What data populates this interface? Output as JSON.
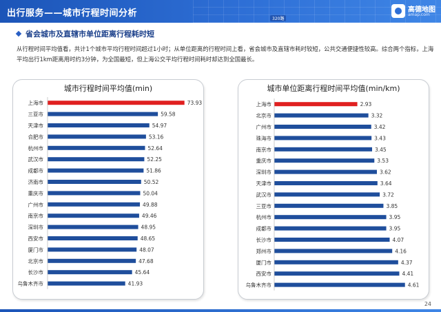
{
  "header": {
    "title": "出行服务——城市行程时间分析",
    "map_badge": "320路",
    "logo_name": "高德地图",
    "logo_url": "amap.com"
  },
  "section": {
    "title": "省会城市及直辖市单位距离行程耗时短"
  },
  "paragraph": "从行程时间平均值看，共计1个城市平均行程时间超过1小时；从单位距离的行程时间上看，省会城市及直辖市耗时较短，公共交通便捷性较高。综合两个指标，上海平均出行1km距离用时约3分钟，为全国最短，但上海公交平均行程时间耗时却达到全国最长。",
  "page_number": "24",
  "colors": {
    "bar": "#1f4e9c",
    "highlight": "#e02020",
    "header": "#2e6fd6"
  },
  "chart_data": [
    {
      "type": "bar",
      "orientation": "horizontal",
      "title": "城市行程时间平均值(min)",
      "categories": [
        "上海市",
        "三亚市",
        "天津市",
        "合肥市",
        "杭州市",
        "武汉市",
        "成都市",
        "济南市",
        "重庆市",
        "广州市",
        "南京市",
        "深圳市",
        "西安市",
        "厦门市",
        "北京市",
        "长沙市",
        "乌鲁木齐市"
      ],
      "values": [
        73.93,
        59.58,
        54.97,
        53.16,
        52.64,
        52.25,
        51.86,
        50.52,
        50.04,
        49.88,
        49.46,
        48.95,
        48.65,
        48.07,
        47.68,
        45.64,
        41.93
      ],
      "value_labels": [
        "73.93",
        "59.58",
        "54.97",
        "53.16",
        "52.64",
        "52.25",
        "51.86",
        "50.52",
        "50.04",
        "49.88",
        "49.46",
        "48.95",
        "48.65",
        "48.07",
        "47.68",
        "45.64",
        "41.93"
      ],
      "highlight_index": 0,
      "xlim": [
        0,
        80
      ],
      "grid": false,
      "legend": "none"
    },
    {
      "type": "bar",
      "orientation": "horizontal",
      "title": "城市单位距离行程时间平均值(min/km)",
      "categories": [
        "上海市",
        "北京市",
        "广州市",
        "珠海市",
        "南京市",
        "重庆市",
        "深圳市",
        "天津市",
        "武汉市",
        "三亚市",
        "杭州市",
        "成都市",
        "长沙市",
        "郑州市",
        "厦门市",
        "西安市",
        "乌鲁木齐市"
      ],
      "values": [
        2.93,
        3.32,
        3.42,
        3.43,
        3.45,
        3.53,
        3.62,
        3.64,
        3.72,
        3.85,
        3.95,
        3.95,
        4.07,
        4.16,
        4.37,
        4.41,
        4.61
      ],
      "value_labels": [
        "2.93",
        "3.32",
        "3.42",
        "3.43",
        "3.45",
        "3.53",
        "3.62",
        "3.64",
        "3.72",
        "3.85",
        "3.95",
        "3.95",
        "4.07",
        "4.16",
        "4.37",
        "4.41",
        "4.61"
      ],
      "highlight_index": 0,
      "xlim": [
        0,
        5.2
      ],
      "grid": false,
      "legend": "none"
    }
  ]
}
